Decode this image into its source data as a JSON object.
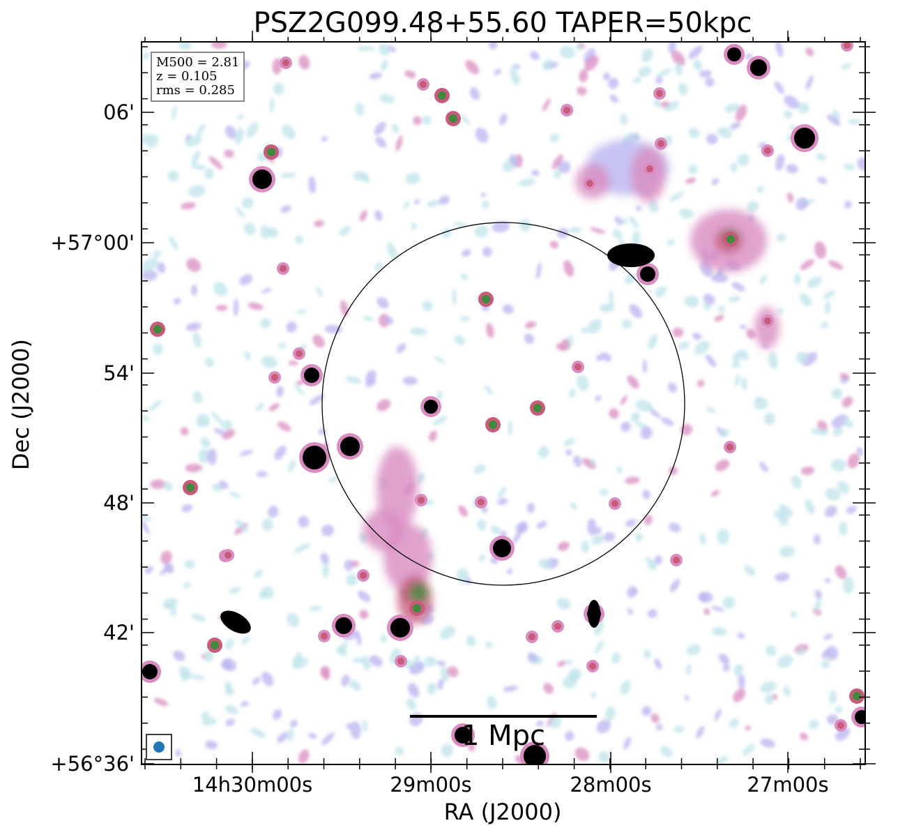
{
  "title": "PSZ2G099.48+55.60 TAPER=50kpc",
  "axes": {
    "xlabel": "RA (J2000)",
    "ylabel": "Dec (J2000)",
    "xticks": [
      "14h30m00s",
      "29m00s",
      "28m00s",
      "27m00s"
    ],
    "yticks": [
      "06'",
      "+57°00'",
      "54'",
      "48'",
      "42'",
      "+56°36'"
    ]
  },
  "info_box": {
    "m500": "M500 = 2.81",
    "z": "z = 0.105",
    "rms": "rms = 0.285"
  },
  "scale_bar": {
    "label": "1 Mpc"
  },
  "colors": {
    "faint": "#bfe3ea",
    "low": "#b9b4ef",
    "mid": "#d88cc0",
    "high": "#c85a7a",
    "peak": "#3f8a3c",
    "saturated": "#000000",
    "beam": "#1f77b4"
  }
}
